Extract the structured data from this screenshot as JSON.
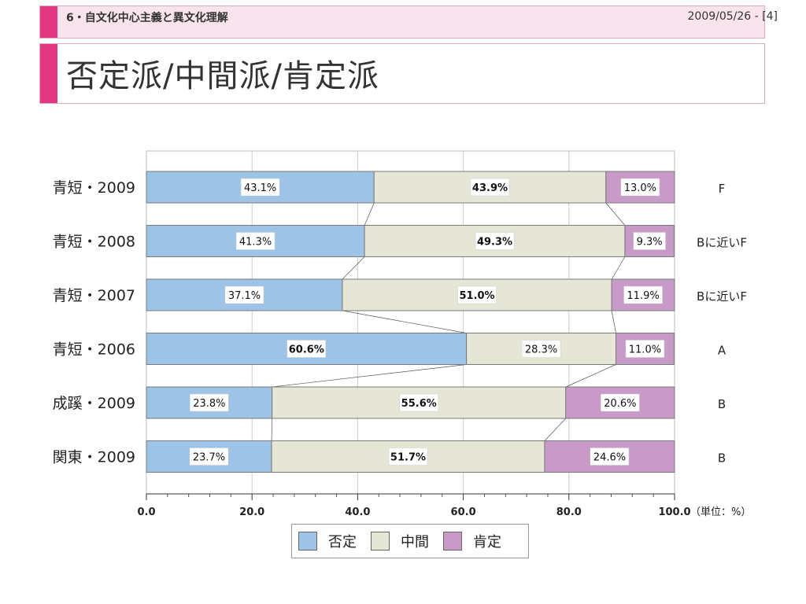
{
  "header": {
    "section": "6・自文化中心主義と異文化理解",
    "date": "2009/05/26 - [4]",
    "title": "否定派/中間派/肯定派"
  },
  "colors": {
    "accent": "#e23781",
    "negative": "#9dc3e6",
    "neutral": "#e6e6d7",
    "positive": "#c89ac8"
  },
  "chart_data": {
    "type": "bar",
    "orientation": "horizontal",
    "stacked": true,
    "categories": [
      "青短・2009",
      "青短・2008",
      "青短・2007",
      "青短・2006",
      "成蹊・2009",
      "関東・2009"
    ],
    "right_labels": [
      "F",
      "Bに近いF",
      "Bに近いF",
      "A",
      "B",
      "B"
    ],
    "series": [
      {
        "name": "否定",
        "values": [
          43.1,
          41.3,
          37.1,
          60.6,
          23.8,
          23.7
        ],
        "labels": [
          "43.1%",
          "41.3%",
          "37.1%",
          "60.6%",
          "23.8%",
          "23.7%"
        ],
        "color": "#9dc3e6"
      },
      {
        "name": "中間",
        "values": [
          43.9,
          49.3,
          51.0,
          28.3,
          55.6,
          51.7
        ],
        "labels": [
          "43.9%",
          "49.3%",
          "51.0%",
          "28.3%",
          "55.6%",
          "51.7%"
        ],
        "color": "#e6e6d7"
      },
      {
        "name": "肯定",
        "values": [
          13.0,
          9.3,
          11.9,
          11.0,
          20.6,
          24.6
        ],
        "labels": [
          "13.0%",
          "9.3%",
          "11.9%",
          "11.0%",
          "20.6%",
          "24.6%"
        ],
        "color": "#c89ac8"
      }
    ],
    "bold_labels": [
      [
        false,
        true,
        false
      ],
      [
        false,
        true,
        false
      ],
      [
        false,
        true,
        false
      ],
      [
        true,
        false,
        false
      ],
      [
        false,
        true,
        false
      ],
      [
        false,
        true,
        false
      ]
    ],
    "xlim": [
      0,
      100
    ],
    "xticks": [
      "0.0",
      "20.0",
      "40.0",
      "60.0",
      "80.0",
      "100.0"
    ],
    "unit_label": "（単位：%）",
    "grid": true,
    "legend_position": "bottom"
  }
}
